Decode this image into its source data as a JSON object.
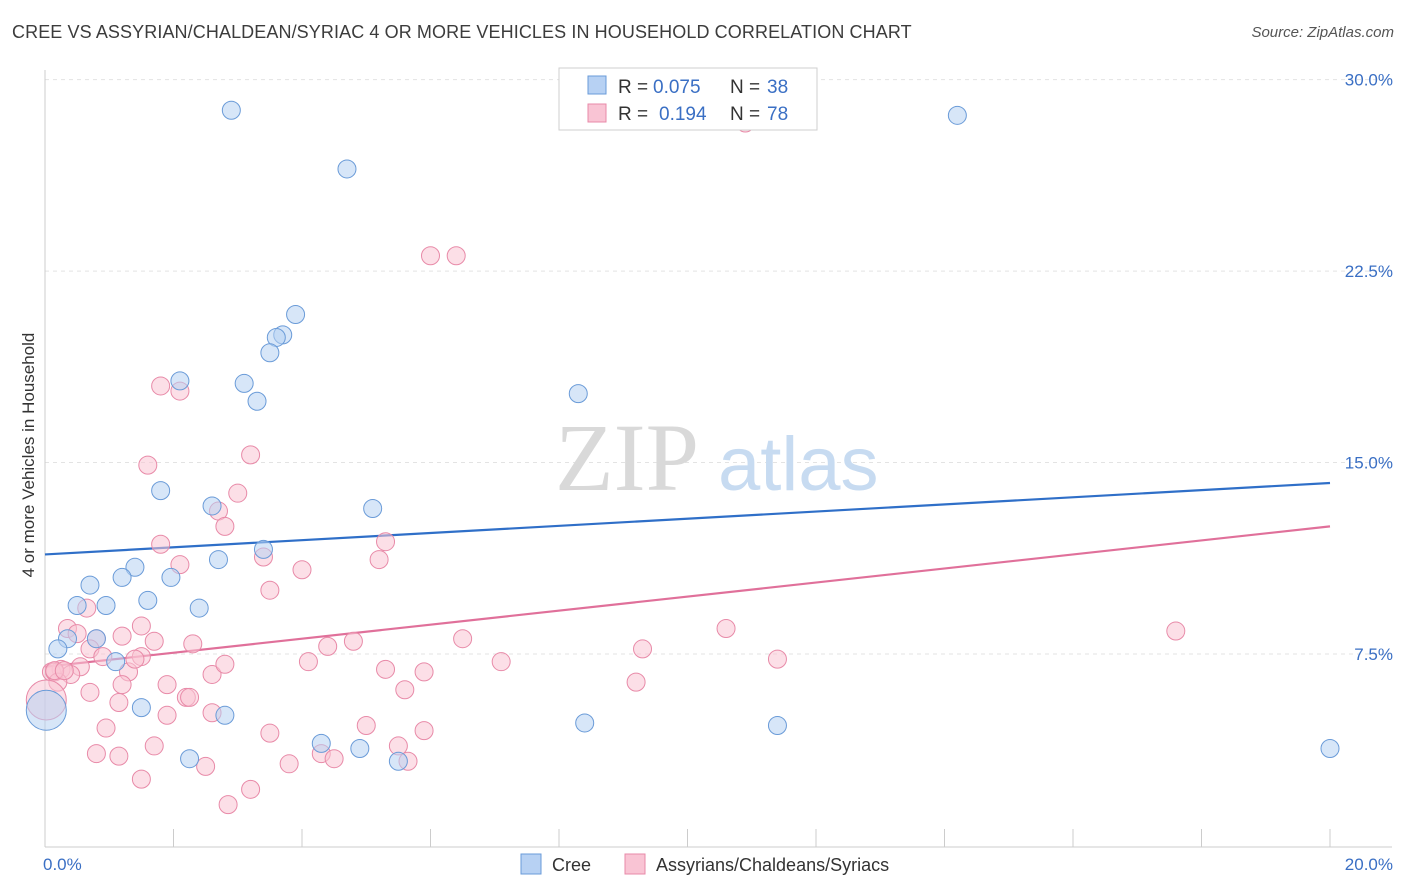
{
  "title": "CREE VS ASSYRIAN/CHALDEAN/SYRIAC 4 OR MORE VEHICLES IN HOUSEHOLD CORRELATION CHART",
  "source": "Source: ZipAtlas.com",
  "watermark": {
    "zip": "ZIP",
    "atlas": "atlas"
  },
  "legend": {
    "r_label": "R =",
    "n_label": "N =",
    "rows": [
      {
        "name": "Cree",
        "r": "0.075",
        "n": "38"
      },
      {
        "name": "Assyrians/Chaldeans/Syriacs",
        "r": "0.194",
        "n": "78"
      }
    ]
  },
  "chart_data": {
    "type": "scatter",
    "title": "CREE VS ASSYRIAN/CHALDEAN/SYRIAC 4 OR MORE VEHICLES IN HOUSEHOLD CORRELATION CHART",
    "xlabel": "",
    "ylabel": "4 or more Vehicles in Household",
    "xlim": [
      0,
      20
    ],
    "ylim": [
      0,
      31
    ],
    "x_tick_labels": [
      {
        "value": 0,
        "label": "0.0%"
      },
      {
        "value": 20,
        "label": "20.0%"
      }
    ],
    "y_tick_labels": [
      {
        "value": 7.5,
        "label": "7.5%"
      },
      {
        "value": 15,
        "label": "15.0%"
      },
      {
        "value": 22.5,
        "label": "22.5%"
      },
      {
        "value": 30,
        "label": "30.0%"
      }
    ],
    "x_minor_ticks": [
      0,
      2,
      4,
      6,
      8,
      10,
      12,
      14,
      16,
      18,
      20
    ],
    "grid": true,
    "legend_position": "top-center",
    "colors": {
      "cree_fill": "#b7d1f3",
      "cree_stroke": "#6a9bd8",
      "cree_line": "#2f6fc8",
      "assyrian_fill": "#f9c4d4",
      "assyrian_stroke": "#e88aa8",
      "assyrian_line": "#e0709a"
    },
    "series": [
      {
        "name": "Cree",
        "trend": {
          "x0": 0,
          "y0": 11.4,
          "x1": 20,
          "y1": 14.2
        },
        "points": [
          [
            2.9,
            28.8
          ],
          [
            14.2,
            28.6
          ],
          [
            4.7,
            26.5
          ],
          [
            3.9,
            20.8
          ],
          [
            3.7,
            20.0
          ],
          [
            3.6,
            19.9
          ],
          [
            3.5,
            19.3
          ],
          [
            2.1,
            18.2
          ],
          [
            3.1,
            18.1
          ],
          [
            3.3,
            17.4
          ],
          [
            8.3,
            17.7
          ],
          [
            1.8,
            13.9
          ],
          [
            2.6,
            13.3
          ],
          [
            5.1,
            13.2
          ],
          [
            3.4,
            11.6
          ],
          [
            2.7,
            11.2
          ],
          [
            1.4,
            10.9
          ],
          [
            1.2,
            10.5
          ],
          [
            1.96,
            10.5
          ],
          [
            0.7,
            10.2
          ],
          [
            1.6,
            9.6
          ],
          [
            0.5,
            9.4
          ],
          [
            0.95,
            9.4
          ],
          [
            2.4,
            9.3
          ],
          [
            0.35,
            8.1
          ],
          [
            0.8,
            8.1
          ],
          [
            0.2,
            7.7
          ],
          [
            1.1,
            7.2
          ],
          [
            1.5,
            5.4
          ],
          [
            2.8,
            5.1
          ],
          [
            8.4,
            4.8
          ],
          [
            11.4,
            4.7
          ],
          [
            4.3,
            4.0
          ],
          [
            4.9,
            3.8
          ],
          [
            2.25,
            3.4
          ],
          [
            5.5,
            3.3
          ],
          [
            20.0,
            3.8
          ],
          [
            0.02,
            5.3
          ]
        ]
      },
      {
        "name": "Assyrians/Chaldeans/Syriacs",
        "trend": {
          "x0": 0,
          "y0": 7.0,
          "x1": 20,
          "y1": 12.5
        },
        "points": [
          [
            10.9,
            28.3
          ],
          [
            6.4,
            23.1
          ],
          [
            1.8,
            18.0
          ],
          [
            2.1,
            17.8
          ],
          [
            3.2,
            15.3
          ],
          [
            1.6,
            14.9
          ],
          [
            3.0,
            13.8
          ],
          [
            2.7,
            13.1
          ],
          [
            2.8,
            12.5
          ],
          [
            5.3,
            11.9
          ],
          [
            1.8,
            11.8
          ],
          [
            3.4,
            11.3
          ],
          [
            5.2,
            11.2
          ],
          [
            2.1,
            11.0
          ],
          [
            4.0,
            10.8
          ],
          [
            3.5,
            10.0
          ],
          [
            0.65,
            9.3
          ],
          [
            1.5,
            8.6
          ],
          [
            0.35,
            8.5
          ],
          [
            10.6,
            8.5
          ],
          [
            0.5,
            8.3
          ],
          [
            1.2,
            8.2
          ],
          [
            0.8,
            8.1
          ],
          [
            6.5,
            8.1
          ],
          [
            1.7,
            8.0
          ],
          [
            4.8,
            8.0
          ],
          [
            2.3,
            7.9
          ],
          [
            4.4,
            7.8
          ],
          [
            9.3,
            7.7
          ],
          [
            0.7,
            7.7
          ],
          [
            17.6,
            8.4
          ],
          [
            1.5,
            7.4
          ],
          [
            0.9,
            7.4
          ],
          [
            4.1,
            7.2
          ],
          [
            7.1,
            7.2
          ],
          [
            11.4,
            7.3
          ],
          [
            0.55,
            7.0
          ],
          [
            0.25,
            6.9
          ],
          [
            0.1,
            6.8
          ],
          [
            0.15,
            6.8
          ],
          [
            0.4,
            6.7
          ],
          [
            1.3,
            6.8
          ],
          [
            2.6,
            6.7
          ],
          [
            5.3,
            6.9
          ],
          [
            5.9,
            6.8
          ],
          [
            2.8,
            7.1
          ],
          [
            0.2,
            6.4
          ],
          [
            1.2,
            6.3
          ],
          [
            1.9,
            6.3
          ],
          [
            9.2,
            6.4
          ],
          [
            0.7,
            6.0
          ],
          [
            5.6,
            6.1
          ],
          [
            2.2,
            5.8
          ],
          [
            2.25,
            5.8
          ],
          [
            1.15,
            5.6
          ],
          [
            0.02,
            5.7
          ],
          [
            1.9,
            5.1
          ],
          [
            2.6,
            5.2
          ],
          [
            0.95,
            4.6
          ],
          [
            5.0,
            4.7
          ],
          [
            5.9,
            4.5
          ],
          [
            3.5,
            4.4
          ],
          [
            1.7,
            3.9
          ],
          [
            5.5,
            3.9
          ],
          [
            0.8,
            3.6
          ],
          [
            1.15,
            3.5
          ],
          [
            4.3,
            3.6
          ],
          [
            4.5,
            3.4
          ],
          [
            5.65,
            3.3
          ],
          [
            2.5,
            3.1
          ],
          [
            3.8,
            3.2
          ],
          [
            1.5,
            2.6
          ],
          [
            3.2,
            2.2
          ],
          [
            2.85,
            1.6
          ],
          [
            0.15,
            6.85
          ],
          [
            0.3,
            6.85
          ],
          [
            1.4,
            7.3
          ],
          [
            6.0,
            23.1
          ]
        ]
      }
    ]
  }
}
